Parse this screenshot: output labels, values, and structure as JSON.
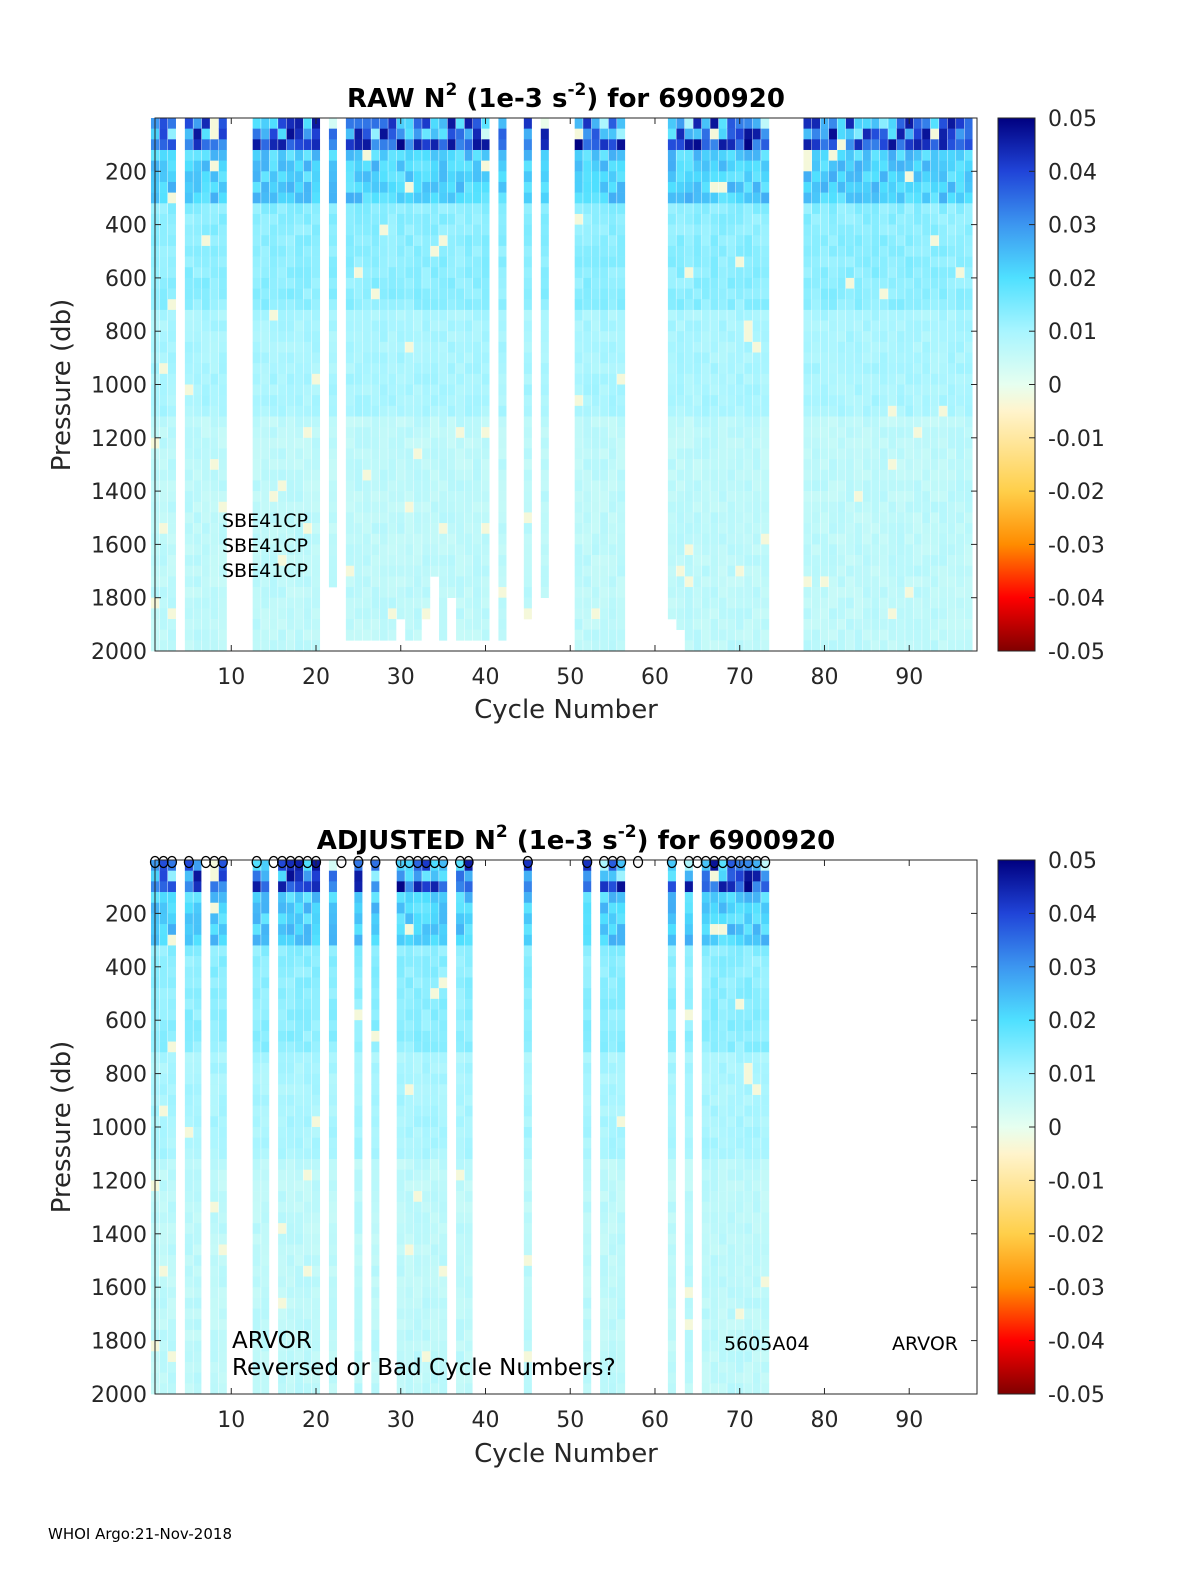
{
  "footer": "WHOI Argo:21-Nov-2018",
  "colors": {
    "colormap": [
      "#800000",
      "#ff0000",
      "#ff8c00",
      "#ffcf4a",
      "#fff4cc",
      "#e6fff0",
      "#a8f5ff",
      "#4fe0ff",
      "#3c96f0",
      "#2044d8",
      "#000080"
    ],
    "marker_fill": "#ffffff",
    "marker_stroke": "#000000"
  },
  "chart_data": [
    {
      "type": "heatmap",
      "panel": "raw",
      "title_main": "RAW N",
      "title_sup": "2",
      "title_units_a": " (1e-3 s",
      "title_units_sup": "-2",
      "title_units_b": ") for 6900920",
      "xlabel": "Cycle Number",
      "ylabel": "Pressure (db)",
      "xlim": [
        1,
        98
      ],
      "ylim": [
        0,
        2000
      ],
      "xticks": [
        "10",
        "20",
        "30",
        "40",
        "50",
        "60",
        "70",
        "80",
        "90"
      ],
      "yticks": [
        "200",
        "400",
        "600",
        "800",
        "1000",
        "1200",
        "1400",
        "1600",
        "1800",
        "2000"
      ],
      "clim": [
        -0.05,
        0.05
      ],
      "colorbar_ticks": [
        "0.05",
        "0.04",
        "0.03",
        "0.02",
        "0.01",
        "0",
        "-0.01",
        "-0.02",
        "-0.03",
        "-0.04",
        "-0.05"
      ],
      "annotations": [
        "SBE41CP",
        "SBE41CP",
        "SBE41CP"
      ],
      "cycles": [
        1,
        2,
        3,
        5,
        6,
        7,
        8,
        9,
        13,
        14,
        15,
        16,
        17,
        18,
        19,
        20,
        22,
        24,
        25,
        26,
        27,
        28,
        29,
        30,
        31,
        32,
        33,
        34,
        35,
        36,
        37,
        38,
        39,
        40,
        42,
        45,
        47,
        51,
        52,
        53,
        54,
        55,
        56,
        62,
        63,
        64,
        65,
        66,
        67,
        68,
        69,
        70,
        71,
        72,
        73,
        78,
        79,
        80,
        81,
        82,
        83,
        84,
        85,
        86,
        87,
        88,
        89,
        90,
        91,
        92,
        93,
        94,
        95,
        96,
        97
      ],
      "max_pressure": {
        "22": 1750,
        "24": 1950,
        "25": 1950,
        "26": 1950,
        "27": 1950,
        "28": 1950,
        "29": 1950,
        "30": 1850,
        "31": 1950,
        "32": 1950,
        "33": 1850,
        "34": 1700,
        "35": 1950,
        "36": 1800,
        "37": 1950,
        "38": 1950,
        "39": 1950,
        "40": 1950,
        "42": 1950,
        "45": 1850,
        "47": 1800,
        "62": 1850,
        "63": 1900,
        "64": 2000,
        "65": 2000,
        "66": 2000
      }
    },
    {
      "type": "heatmap",
      "panel": "adjusted",
      "title_main": "ADJUSTED N",
      "title_sup": "2",
      "title_units_a": " (1e-3 s",
      "title_units_sup": "-2",
      "title_units_b": ") for 6900920",
      "xlabel": "Cycle Number",
      "ylabel": "Pressure (db)",
      "xlim": [
        1,
        98
      ],
      "ylim": [
        0,
        2000
      ],
      "xticks": [
        "10",
        "20",
        "30",
        "40",
        "50",
        "60",
        "70",
        "80",
        "90"
      ],
      "yticks": [
        "200",
        "400",
        "600",
        "800",
        "1000",
        "1200",
        "1400",
        "1600",
        "1800",
        "2000"
      ],
      "clim": [
        -0.05,
        0.05
      ],
      "colorbar_ticks": [
        "0.05",
        "0.04",
        "0.03",
        "0.02",
        "0.01",
        "0",
        "-0.01",
        "-0.02",
        "-0.03",
        "-0.04",
        "-0.05"
      ],
      "annotations": [
        "ARVOR",
        "Reversed or Bad Cycle Numbers?",
        "5605A04",
        "ARVOR"
      ],
      "cycles": [
        1,
        2,
        3,
        5,
        6,
        8,
        9,
        13,
        14,
        16,
        17,
        18,
        19,
        20,
        22,
        25,
        27,
        30,
        31,
        32,
        33,
        34,
        35,
        37,
        38,
        45,
        52,
        54,
        55,
        56,
        62,
        64,
        66,
        67,
        68,
        69,
        70,
        71,
        72,
        73
      ],
      "bad_cycle_markers": [
        1,
        2,
        3,
        5,
        7,
        8,
        9,
        13,
        15,
        16,
        17,
        18,
        19,
        20,
        23,
        25,
        27,
        30,
        31,
        32,
        33,
        34,
        35,
        37,
        38,
        45,
        52,
        54,
        55,
        56,
        58,
        62,
        64,
        65,
        66,
        67,
        68,
        69,
        70,
        71,
        72,
        73
      ]
    }
  ]
}
